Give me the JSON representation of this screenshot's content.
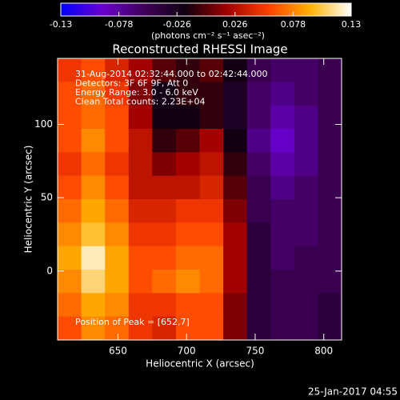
{
  "chart_data": {
    "type": "heatmap",
    "title": "Reconstructed RHESSI Image",
    "x_label": "Heliocentric X (arcsec)",
    "y_label": "Heliocentric Y (arcsec)",
    "colorbar_label": "(photons cm⁻² s⁻¹ asec⁻²)",
    "timestamp": "25-Jan-2017 04:55",
    "annotations": [
      "31-Aug-2014 02:32:44.000 to 02:42:44.000",
      "Detectors: 3F 6F 9F, Att 0",
      "Energy Range: 3.0 - 6.0 keV",
      "Clean    Total counts: 2.23E+04"
    ],
    "peak_label": "Position of Peak = [652,7]",
    "xlim": [
      606,
      813
    ],
    "xticks": [
      650,
      700,
      750,
      800
    ],
    "ylim": [
      -47,
      145
    ],
    "yticks": [
      0,
      50,
      100
    ],
    "clim": [
      -0.13,
      0.13
    ],
    "cticks": [
      -0.13,
      -0.078,
      -0.026,
      0.026,
      0.078,
      0.13
    ],
    "colors": [
      "#0000ff",
      "#6a00d0",
      "#40005a",
      "#100010",
      "#a00000",
      "#ff4000",
      "#ffb000",
      "#ffffff"
    ],
    "z": [
      [
        0.05,
        0.06,
        0.04,
        0.02,
        0.0,
        -0.01,
        0.0,
        -0.02,
        -0.05,
        -0.06,
        -0.06,
        -0.05
      ],
      [
        0.06,
        0.07,
        0.05,
        0.01,
        -0.02,
        -0.01,
        -0.01,
        -0.03,
        -0.06,
        -0.07,
        -0.06,
        -0.05
      ],
      [
        0.06,
        0.07,
        0.06,
        0.02,
        -0.02,
        -0.02,
        -0.01,
        -0.03,
        -0.06,
        -0.08,
        -0.07,
        -0.05
      ],
      [
        0.06,
        0.08,
        0.06,
        0.03,
        -0.01,
        0.0,
        0.02,
        -0.02,
        -0.07,
        -0.09,
        -0.07,
        -0.05
      ],
      [
        0.05,
        0.07,
        0.05,
        0.03,
        0.01,
        0.02,
        0.03,
        -0.01,
        -0.06,
        -0.08,
        -0.07,
        -0.05
      ],
      [
        0.06,
        0.08,
        0.06,
        0.03,
        0.03,
        0.03,
        0.04,
        0.0,
        -0.05,
        -0.07,
        -0.06,
        -0.05
      ],
      [
        0.07,
        0.09,
        0.07,
        0.04,
        0.04,
        0.05,
        0.05,
        0.01,
        -0.05,
        -0.06,
        -0.06,
        -0.05
      ],
      [
        0.08,
        0.1,
        0.08,
        0.05,
        0.05,
        0.06,
        0.06,
        0.02,
        -0.04,
        -0.06,
        -0.06,
        -0.05
      ],
      [
        0.09,
        0.12,
        0.09,
        0.06,
        0.06,
        0.07,
        0.07,
        0.02,
        -0.04,
        -0.06,
        -0.05,
        -0.05
      ],
      [
        0.08,
        0.11,
        0.09,
        0.06,
        0.07,
        0.08,
        0.07,
        0.02,
        -0.04,
        -0.05,
        -0.05,
        -0.05
      ],
      [
        0.07,
        0.09,
        0.08,
        0.05,
        0.05,
        0.06,
        0.06,
        0.01,
        -0.04,
        -0.05,
        -0.05,
        -0.04
      ],
      [
        0.06,
        0.08,
        0.07,
        0.05,
        0.04,
        0.06,
        0.06,
        0.01,
        -0.04,
        -0.05,
        -0.05,
        -0.04
      ]
    ]
  }
}
